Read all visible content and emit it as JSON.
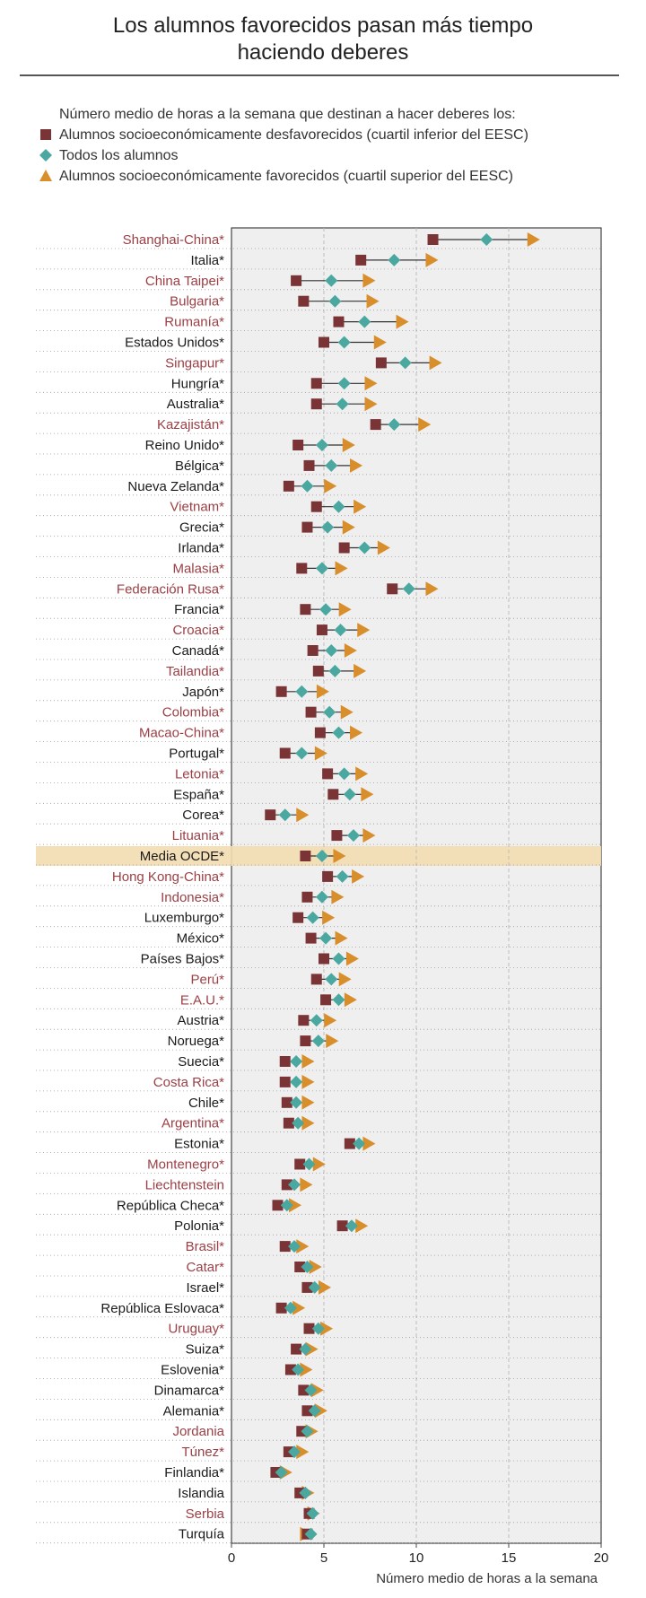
{
  "page": {
    "title_line1": "Los alumnos favorecidos pasan más tiempo",
    "title_line2": "haciendo deberes"
  },
  "legend": {
    "title": "Número medio de horas a la semana que destinan a hacer deberes los:",
    "items": [
      {
        "label": "Alumnos socioeconómicamente desfavorecidos (cuartil inferior del EESC)",
        "symbol": "square-icon"
      },
      {
        "label": "Todos los alumnos",
        "symbol": "diamond-icon"
      },
      {
        "label": "Alumnos socioeconómicamente favorecidos (cuartil superior del EESC)",
        "symbol": "triangle-icon"
      }
    ]
  },
  "colors": {
    "disadvantaged": "#7a3436",
    "all": "#4aa8a0",
    "advantaged": "#d98e2c",
    "partner_label": "#9b3f45",
    "member_label": "#1a1a1a",
    "highlight": "#f3ddb0",
    "plot_bg": "#efefef"
  },
  "chart_data": {
    "type": "dot-range",
    "title": "Los alumnos favorecidos pasan más tiempo haciendo deberes",
    "xlabel": "Número medio de horas a la semana",
    "xlim": [
      0,
      20
    ],
    "xticks": [
      "0",
      "5",
      "10",
      "15",
      "20"
    ],
    "series_names": [
      "Alumnos socioeconómicamente desfavorecidos (cuartil inferior del EESC)",
      "Todos los alumnos",
      "Alumnos socioeconómicamente favorecidos (cuartil superior del EESC)"
    ],
    "rows": [
      {
        "label": "Shanghai-China*",
        "partner": true,
        "dis": 10.9,
        "all": 13.8,
        "adv": 16.3
      },
      {
        "label": "Italia*",
        "partner": false,
        "dis": 7.0,
        "all": 8.8,
        "adv": 10.8
      },
      {
        "label": "China Taipei*",
        "partner": true,
        "dis": 3.5,
        "all": 5.4,
        "adv": 7.4
      },
      {
        "label": "Bulgaria*",
        "partner": true,
        "dis": 3.9,
        "all": 5.6,
        "adv": 7.6
      },
      {
        "label": "Rumanía*",
        "partner": true,
        "dis": 5.8,
        "all": 7.2,
        "adv": 9.2
      },
      {
        "label": "Estados Unidos*",
        "partner": false,
        "dis": 5.0,
        "all": 6.1,
        "adv": 8.0
      },
      {
        "label": "Singapur*",
        "partner": true,
        "dis": 8.1,
        "all": 9.4,
        "adv": 11.0
      },
      {
        "label": "Hungría*",
        "partner": false,
        "dis": 4.6,
        "all": 6.1,
        "adv": 7.5
      },
      {
        "label": "Australia*",
        "partner": false,
        "dis": 4.6,
        "all": 6.0,
        "adv": 7.5
      },
      {
        "label": "Kazajistán*",
        "partner": true,
        "dis": 7.8,
        "all": 8.8,
        "adv": 10.4
      },
      {
        "label": "Reino Unido*",
        "partner": false,
        "dis": 3.6,
        "all": 4.9,
        "adv": 6.3
      },
      {
        "label": "Bélgica*",
        "partner": false,
        "dis": 4.2,
        "all": 5.4,
        "adv": 6.7
      },
      {
        "label": "Nueva Zelanda*",
        "partner": false,
        "dis": 3.1,
        "all": 4.1,
        "adv": 5.3
      },
      {
        "label": "Vietnam*",
        "partner": true,
        "dis": 4.6,
        "all": 5.8,
        "adv": 6.9
      },
      {
        "label": "Grecia*",
        "partner": false,
        "dis": 4.1,
        "all": 5.2,
        "adv": 6.3
      },
      {
        "label": "Irlanda*",
        "partner": false,
        "dis": 6.1,
        "all": 7.2,
        "adv": 8.2
      },
      {
        "label": "Malasia*",
        "partner": true,
        "dis": 3.8,
        "all": 4.9,
        "adv": 5.9
      },
      {
        "label": "Federación Rusa*",
        "partner": true,
        "dis": 8.7,
        "all": 9.6,
        "adv": 10.8
      },
      {
        "label": "Francia*",
        "partner": false,
        "dis": 4.0,
        "all": 5.1,
        "adv": 6.1
      },
      {
        "label": "Croacia*",
        "partner": true,
        "dis": 4.9,
        "all": 5.9,
        "adv": 7.1
      },
      {
        "label": "Canadá*",
        "partner": false,
        "dis": 4.4,
        "all": 5.4,
        "adv": 6.4
      },
      {
        "label": "Tailandia*",
        "partner": true,
        "dis": 4.7,
        "all": 5.6,
        "adv": 6.9
      },
      {
        "label": "Japón*",
        "partner": false,
        "dis": 2.7,
        "all": 3.8,
        "adv": 4.9
      },
      {
        "label": "Colombia*",
        "partner": true,
        "dis": 4.3,
        "all": 5.3,
        "adv": 6.2
      },
      {
        "label": "Macao-China*",
        "partner": true,
        "dis": 4.8,
        "all": 5.8,
        "adv": 6.7
      },
      {
        "label": "Portugal*",
        "partner": false,
        "dis": 2.9,
        "all": 3.8,
        "adv": 4.8
      },
      {
        "label": "Letonia*",
        "partner": true,
        "dis": 5.2,
        "all": 6.1,
        "adv": 7.0
      },
      {
        "label": "España*",
        "partner": false,
        "dis": 5.5,
        "all": 6.4,
        "adv": 7.3
      },
      {
        "label": "Corea*",
        "partner": false,
        "dis": 2.1,
        "all": 2.9,
        "adv": 3.8
      },
      {
        "label": "Lituania*",
        "partner": true,
        "dis": 5.7,
        "all": 6.6,
        "adv": 7.4
      },
      {
        "label": "Media OCDE*",
        "partner": false,
        "highlight": true,
        "dis": 4.0,
        "all": 4.9,
        "adv": 5.8
      },
      {
        "label": "Hong Kong-China*",
        "partner": true,
        "dis": 5.2,
        "all": 6.0,
        "adv": 6.8
      },
      {
        "label": "Indonesia*",
        "partner": true,
        "dis": 4.1,
        "all": 4.9,
        "adv": 5.7
      },
      {
        "label": "Luxemburgo*",
        "partner": false,
        "dis": 3.6,
        "all": 4.4,
        "adv": 5.2
      },
      {
        "label": "México*",
        "partner": false,
        "dis": 4.3,
        "all": 5.1,
        "adv": 5.9
      },
      {
        "label": "Países Bajos*",
        "partner": false,
        "dis": 5.0,
        "all": 5.8,
        "adv": 6.5
      },
      {
        "label": "Perú*",
        "partner": true,
        "dis": 4.6,
        "all": 5.4,
        "adv": 6.1
      },
      {
        "label": "E.A.U.*",
        "partner": true,
        "dis": 5.1,
        "all": 5.8,
        "adv": 6.4
      },
      {
        "label": "Austria*",
        "partner": false,
        "dis": 3.9,
        "all": 4.6,
        "adv": 5.3
      },
      {
        "label": "Noruega*",
        "partner": false,
        "dis": 4.0,
        "all": 4.7,
        "adv": 5.4
      },
      {
        "label": "Suecia*",
        "partner": false,
        "dis": 2.9,
        "all": 3.5,
        "adv": 4.1
      },
      {
        "label": "Costa Rica*",
        "partner": true,
        "dis": 2.9,
        "all": 3.5,
        "adv": 4.1
      },
      {
        "label": "Chile*",
        "partner": false,
        "dis": 3.0,
        "all": 3.5,
        "adv": 4.1
      },
      {
        "label": "Argentina*",
        "partner": true,
        "dis": 3.1,
        "all": 3.6,
        "adv": 4.1
      },
      {
        "label": "Estonia*",
        "partner": false,
        "dis": 6.4,
        "all": 6.9,
        "adv": 7.4
      },
      {
        "label": "Montenegro*",
        "partner": true,
        "dis": 3.7,
        "all": 4.2,
        "adv": 4.7
      },
      {
        "label": "Liechtenstein",
        "partner": true,
        "dis": 3.0,
        "all": 3.4,
        "adv": 4.0
      },
      {
        "label": "República Checa*",
        "partner": false,
        "dis": 2.5,
        "all": 3.0,
        "adv": 3.4
      },
      {
        "label": "Polonia*",
        "partner": false,
        "dis": 6.0,
        "all": 6.5,
        "adv": 7.0
      },
      {
        "label": "Brasil*",
        "partner": true,
        "dis": 2.9,
        "all": 3.4,
        "adv": 3.8
      },
      {
        "label": "Catar*",
        "partner": true,
        "dis": 3.7,
        "all": 4.1,
        "adv": 4.5
      },
      {
        "label": "Israel*",
        "partner": false,
        "dis": 4.1,
        "all": 4.5,
        "adv": 5.0
      },
      {
        "label": "República Eslovaca*",
        "partner": false,
        "dis": 2.7,
        "all": 3.2,
        "adv": 3.6
      },
      {
        "label": "Uruguay*",
        "partner": true,
        "dis": 4.2,
        "all": 4.7,
        "adv": 5.1
      },
      {
        "label": "Suiza*",
        "partner": false,
        "dis": 3.5,
        "all": 4.0,
        "adv": 4.3
      },
      {
        "label": "Eslovenia*",
        "partner": false,
        "dis": 3.2,
        "all": 3.6,
        "adv": 4.0
      },
      {
        "label": "Dinamarca*",
        "partner": false,
        "dis": 3.9,
        "all": 4.3,
        "adv": 4.6
      },
      {
        "label": "Alemania*",
        "partner": false,
        "dis": 4.1,
        "all": 4.5,
        "adv": 4.8
      },
      {
        "label": "Jordania",
        "partner": true,
        "dis": 3.8,
        "all": 4.1,
        "adv": 4.3
      },
      {
        "label": "Túnez*",
        "partner": true,
        "dis": 3.1,
        "all": 3.4,
        "adv": 3.8
      },
      {
        "label": "Finlandia*",
        "partner": false,
        "dis": 2.4,
        "all": 2.7,
        "adv": 2.9
      },
      {
        "label": "Islandia",
        "partner": false,
        "dis": 3.7,
        "all": 4.0,
        "adv": 4.1
      },
      {
        "label": "Serbia",
        "partner": true,
        "dis": 4.2,
        "all": 4.4,
        "adv": 4.4
      },
      {
        "label": "Turquía",
        "partner": false,
        "dis": 4.1,
        "all": 4.3,
        "adv": 4.0
      }
    ]
  }
}
